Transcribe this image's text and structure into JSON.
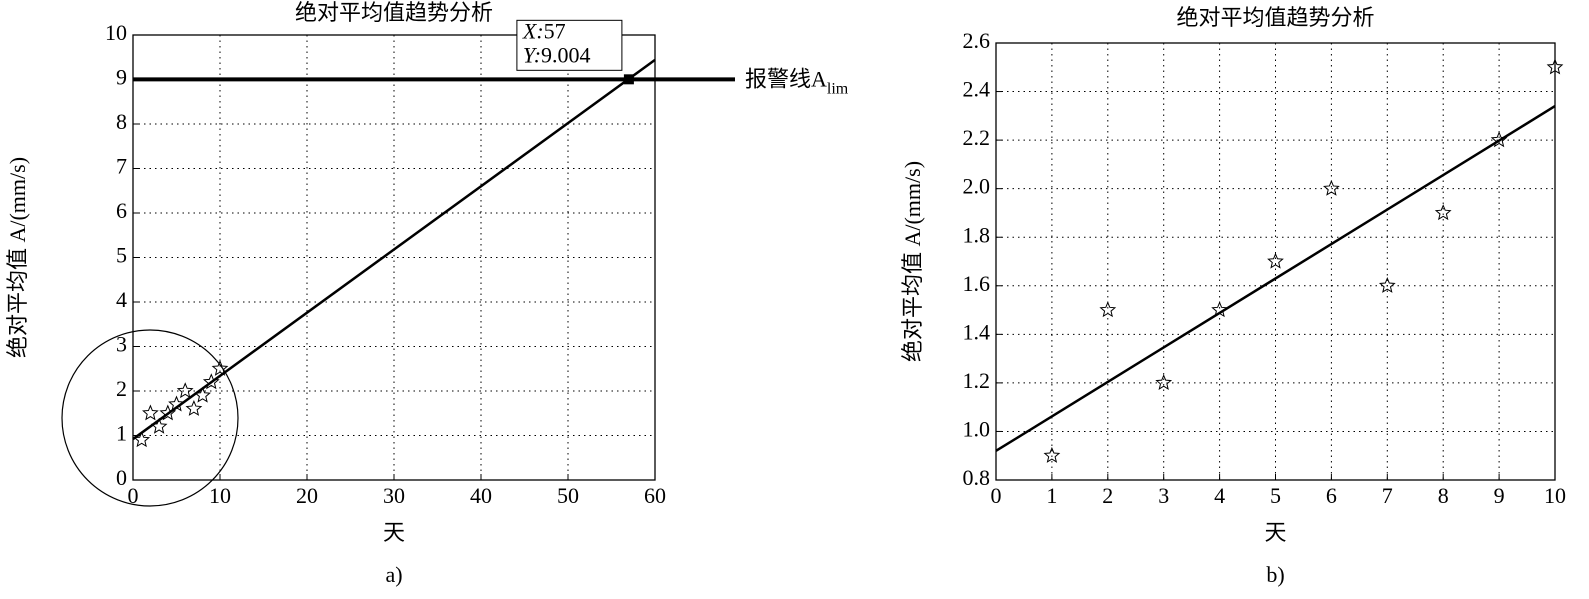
{
  "chart_data": [
    {
      "type": "scatter",
      "title": "绝对平均值趋势分析",
      "xlabel": "天",
      "ylabel": "绝对平均值 A/(mm/s)",
      "caption": "a)",
      "x": [
        1,
        2,
        3,
        4,
        5,
        6,
        7,
        8,
        9,
        10
      ],
      "y": [
        0.9,
        1.5,
        1.2,
        1.5,
        1.7,
        2.0,
        1.6,
        1.9,
        2.2,
        2.5
      ],
      "fit": {
        "x": [
          0,
          60
        ],
        "y": [
          0.92,
          9.44
        ]
      },
      "alarm": {
        "y": 9.004,
        "label": "报警线A",
        "label_sub": "lim"
      },
      "datatip": {
        "x_label": "X:",
        "x": 57,
        "y_label": "Y:",
        "y": 9.004
      },
      "xlim": [
        0,
        60
      ],
      "xticks": [
        0,
        10,
        20,
        30,
        40,
        50,
        60
      ],
      "ylim": [
        0,
        10
      ],
      "yticks": [
        0,
        1,
        2,
        3,
        4,
        5,
        6,
        7,
        8,
        9,
        10
      ],
      "grid": true
    },
    {
      "type": "scatter",
      "title": "绝对平均值趋势分析",
      "xlabel": "天",
      "ylabel": "绝对平均值 A/(mm/s)",
      "caption": "b)",
      "x": [
        1,
        2,
        3,
        4,
        5,
        6,
        7,
        8,
        9,
        10
      ],
      "y": [
        0.9,
        1.5,
        1.2,
        1.5,
        1.7,
        2.0,
        1.6,
        1.9,
        2.2,
        2.5
      ],
      "fit": {
        "x": [
          0,
          10
        ],
        "y": [
          0.92,
          2.34
        ]
      },
      "xlim": [
        0,
        10
      ],
      "xticks": [
        0,
        1,
        2,
        3,
        4,
        5,
        6,
        7,
        8,
        9,
        10
      ],
      "ylim": [
        0.8,
        2.6
      ],
      "yticks": [
        0.8,
        {
          "value": 1,
          "label": "1.0"
        },
        1.2,
        1.4,
        1.6,
        1.8,
        {
          "value": 2,
          "label": "2.0"
        },
        2.2,
        2.4,
        2.6
      ],
      "grid": true
    }
  ]
}
